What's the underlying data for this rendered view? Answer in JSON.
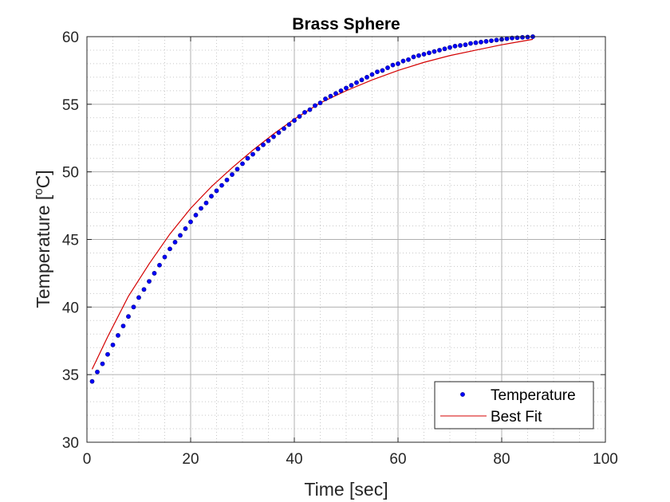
{
  "chart_data": {
    "type": "scatter",
    "title": "Brass Sphere",
    "xlabel": "Time [sec]",
    "ylabel_main": "Temperature [",
    "ylabel_sup": "o",
    "ylabel_end": "C]",
    "xlim": [
      0,
      100
    ],
    "ylim": [
      30,
      60
    ],
    "xticks": [
      0,
      20,
      40,
      60,
      80,
      100
    ],
    "yticks": [
      30,
      35,
      40,
      45,
      50,
      55,
      60
    ],
    "grid": true,
    "minor_grid": true,
    "legend_position": "bottom-right",
    "series": [
      {
        "name": "Temperature",
        "kind": "markers",
        "color": "#0000ff",
        "x": [
          1,
          2,
          3,
          4,
          5,
          6,
          7,
          8,
          9,
          10,
          11,
          12,
          13,
          14,
          15,
          16,
          17,
          18,
          19,
          20,
          21,
          22,
          23,
          24,
          25,
          26,
          27,
          28,
          29,
          30,
          31,
          32,
          33,
          34,
          35,
          36,
          37,
          38,
          39,
          40,
          41,
          42,
          43,
          44,
          45,
          46,
          47,
          48,
          49,
          50,
          51,
          52,
          53,
          54,
          55,
          56,
          57,
          58,
          59,
          60,
          61,
          62,
          63,
          64,
          65,
          66,
          67,
          68,
          69,
          70,
          71,
          72,
          73,
          74,
          75,
          76,
          77,
          78,
          79,
          80,
          81,
          82,
          83,
          84,
          85,
          86
        ],
        "y": [
          34.5,
          35.2,
          35.8,
          36.5,
          37.2,
          37.9,
          38.6,
          39.3,
          40.0,
          40.7,
          41.3,
          41.9,
          42.5,
          43.1,
          43.7,
          44.3,
          44.8,
          45.3,
          45.8,
          46.3,
          46.8,
          47.3,
          47.7,
          48.2,
          48.6,
          49.0,
          49.4,
          49.8,
          50.2,
          50.6,
          51.0,
          51.3,
          51.7,
          52.0,
          52.3,
          52.6,
          52.9,
          53.2,
          53.5,
          53.8,
          54.1,
          54.4,
          54.6,
          54.9,
          55.1,
          55.4,
          55.6,
          55.8,
          56.0,
          56.2,
          56.4,
          56.6,
          56.8,
          57.0,
          57.2,
          57.4,
          57.5,
          57.7,
          57.9,
          58.0,
          58.2,
          58.3,
          58.5,
          58.6,
          58.7,
          58.8,
          58.9,
          59.0,
          59.1,
          59.2,
          59.3,
          59.35,
          59.4,
          59.5,
          59.55,
          59.6,
          59.65,
          59.7,
          59.75,
          59.8,
          59.85,
          59.9,
          59.92,
          59.95,
          59.97,
          60.0
        ]
      },
      {
        "name": "Best Fit",
        "kind": "line",
        "color": "#d40000",
        "x": [
          1,
          4,
          8,
          12,
          16,
          20,
          24,
          28,
          32,
          36,
          40,
          45,
          50,
          55,
          60,
          65,
          70,
          75,
          80,
          86
        ],
        "y": [
          35.4,
          37.8,
          40.8,
          43.2,
          45.4,
          47.3,
          48.9,
          50.3,
          51.6,
          52.8,
          53.9,
          55.1,
          56.0,
          56.8,
          57.5,
          58.1,
          58.6,
          59.0,
          59.4,
          59.8
        ]
      }
    ]
  }
}
